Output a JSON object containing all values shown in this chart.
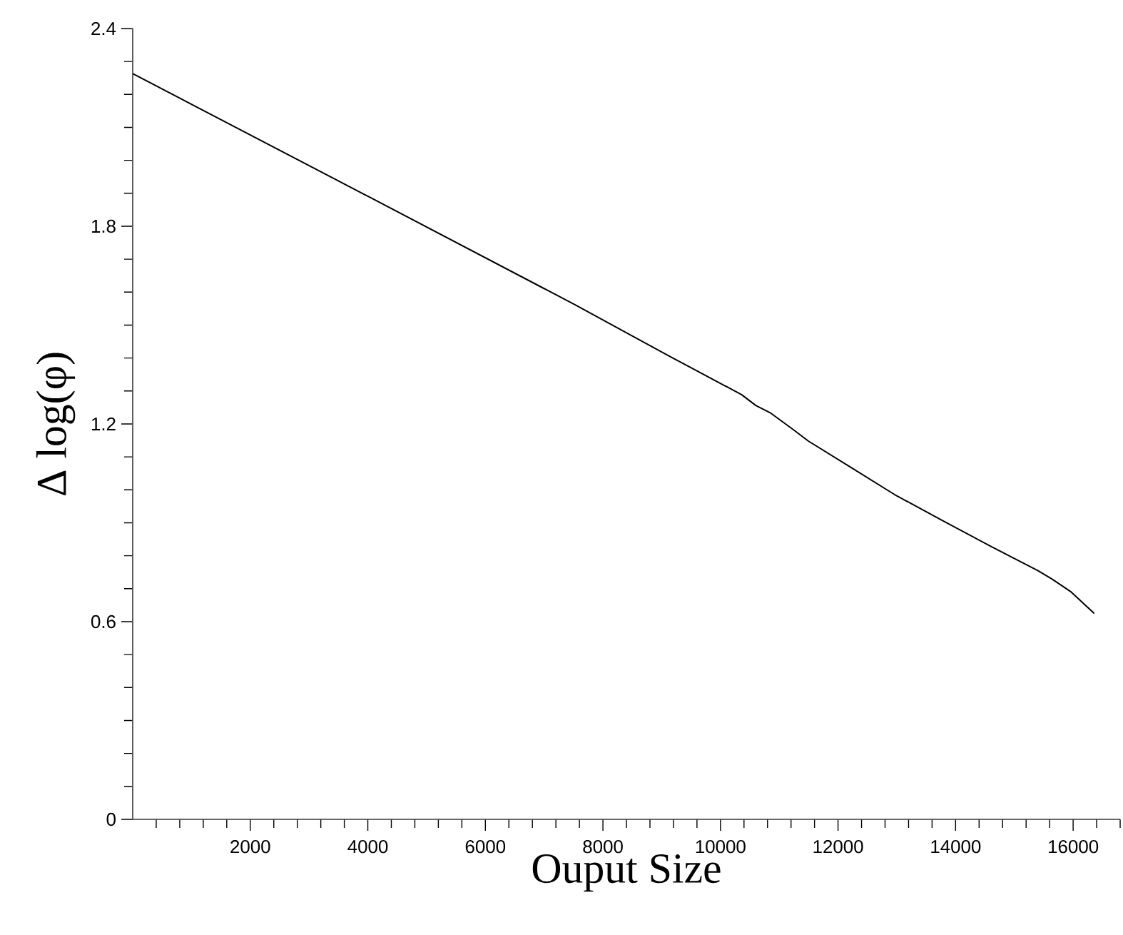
{
  "chart_data": {
    "type": "line",
    "xlabel": "Ouput Size",
    "ylabel": "Δ log(φ)",
    "x": [
      0,
      4000,
      7512,
      9138,
      10358,
      10602,
      10846,
      11252,
      11496,
      12146,
      12959,
      13772,
      14585,
      15398,
      15642,
      15967,
      16358
    ],
    "series": [
      {
        "color": "#000000",
        "values": [
          2.263,
          1.891,
          1.563,
          1.405,
          1.289,
          1.256,
          1.234,
          1.181,
          1.148,
          1.076,
          0.986,
          0.907,
          0.83,
          0.755,
          0.729,
          0.69,
          0.625
        ]
      }
    ],
    "xlim": [
      0,
      16800
    ],
    "ylim": [
      0,
      2.4
    ],
    "xticks": [
      {
        "value": 400,
        "label": null
      },
      {
        "value": 800,
        "label": null
      },
      {
        "value": 1200,
        "label": null
      },
      {
        "value": 1600,
        "label": null
      },
      2000,
      {
        "value": 2400,
        "label": null
      },
      {
        "value": 2800,
        "label": null
      },
      {
        "value": 3200,
        "label": null
      },
      {
        "value": 3600,
        "label": null
      },
      4000,
      {
        "value": 4400,
        "label": null
      },
      {
        "value": 4800,
        "label": null
      },
      {
        "value": 5200,
        "label": null
      },
      {
        "value": 5600,
        "label": null
      },
      6000,
      {
        "value": 6400,
        "label": null
      },
      {
        "value": 6800,
        "label": null
      },
      {
        "value": 7200,
        "label": null
      },
      {
        "value": 7600,
        "label": null
      },
      8000,
      {
        "value": 8400,
        "label": null
      },
      {
        "value": 8800,
        "label": null
      },
      {
        "value": 9200,
        "label": null
      },
      {
        "value": 9600,
        "label": null
      },
      10000,
      {
        "value": 10400,
        "label": null
      },
      {
        "value": 10800,
        "label": null
      },
      {
        "value": 11200,
        "label": null
      },
      {
        "value": 11600,
        "label": null
      },
      12000,
      {
        "value": 12400,
        "label": null
      },
      {
        "value": 12800,
        "label": null
      },
      {
        "value": 13200,
        "label": null
      },
      {
        "value": 13600,
        "label": null
      },
      14000,
      {
        "value": 14400,
        "label": null
      },
      {
        "value": 14800,
        "label": null
      },
      {
        "value": 15200,
        "label": null
      },
      {
        "value": 15600,
        "label": null
      },
      16000,
      {
        "value": 16400,
        "label": null
      },
      {
        "value": 16800,
        "label": null
      }
    ],
    "yticks": [
      0,
      {
        "value": 0.1,
        "label": null
      },
      {
        "value": 0.2,
        "label": null
      },
      {
        "value": 0.3,
        "label": null
      },
      {
        "value": 0.4,
        "label": null
      },
      {
        "value": 0.5,
        "label": null
      },
      0.6,
      {
        "value": 0.7,
        "label": null
      },
      {
        "value": 0.8,
        "label": null
      },
      {
        "value": 0.9,
        "label": null
      },
      {
        "value": 1.0,
        "label": null
      },
      {
        "value": 1.1,
        "label": null
      },
      1.2,
      {
        "value": 1.3,
        "label": null
      },
      {
        "value": 1.4,
        "label": null
      },
      {
        "value": 1.5,
        "label": null
      },
      {
        "value": 1.6,
        "label": null
      },
      {
        "value": 1.7,
        "label": null
      },
      1.8,
      {
        "value": 1.9,
        "label": null
      },
      {
        "value": 2.0,
        "label": null
      },
      {
        "value": 2.1,
        "label": null
      },
      {
        "value": 2.2,
        "label": null
      },
      {
        "value": 2.3,
        "label": null
      },
      2.4
    ],
    "grid": false,
    "marker": "none",
    "line_style": "solid"
  }
}
